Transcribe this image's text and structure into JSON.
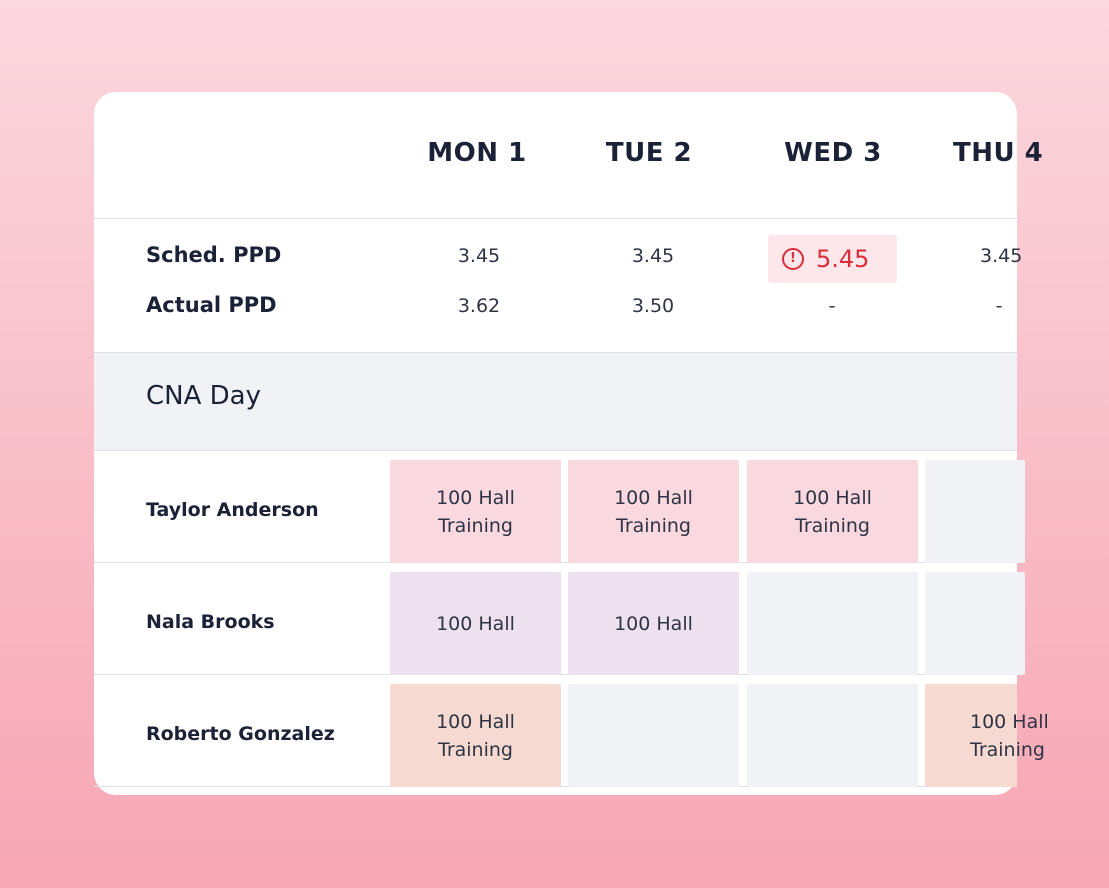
{
  "days": [
    "MON 1",
    "TUE 2",
    "WED 3",
    "THU 4"
  ],
  "ppd": {
    "scheduled": {
      "label": "Sched. PPD",
      "values": [
        "3.45",
        "3.45",
        "5.45",
        "3.45"
      ]
    },
    "actual": {
      "label": "Actual PPD",
      "values": [
        "3.62",
        "3.50",
        "-",
        "-"
      ]
    }
  },
  "section": {
    "title": "CNA Day"
  },
  "staff": [
    {
      "name": "Taylor Anderson",
      "shifts": [
        [
          "100 Hall",
          "Training"
        ],
        [
          "100 Hall",
          "Training"
        ],
        [
          "100 Hall",
          "Training"
        ],
        []
      ]
    },
    {
      "name": "Nala Brooks",
      "shifts": [
        [
          "100 Hall"
        ],
        [
          "100 Hall"
        ],
        [],
        []
      ]
    },
    {
      "name": "Roberto Gonzalez",
      "shifts": [
        [
          "100 Hall",
          "Training"
        ],
        [],
        [],
        [
          "100 Hall",
          "Training"
        ]
      ]
    }
  ],
  "colors": {
    "alert": "#d92d3a",
    "pink": "#f9d8df",
    "lavender": "#ede1ef",
    "peach": "#f6dad1",
    "empty": "#f1f2f6"
  },
  "icons": {
    "alert": "alert-circle-icon"
  }
}
